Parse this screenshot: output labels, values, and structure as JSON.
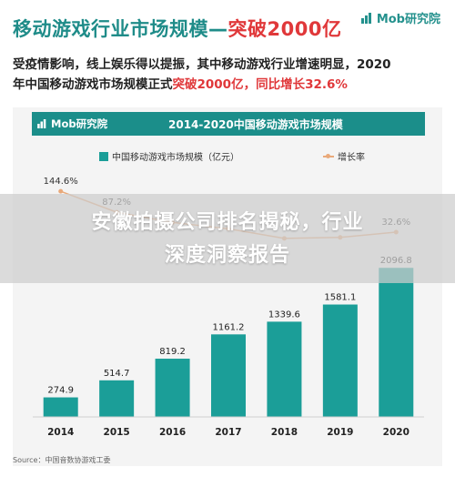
{
  "header": {
    "title_main": "移动游戏行业市场规模—",
    "title_accent": "突破2000亿",
    "brand": "Mob研究院"
  },
  "description": {
    "line1": "受疫情影响，线上娱乐得以提振，其中移动游戏行业增速明显，2020",
    "line2_prefix": "年中国移动游戏市场规模正式",
    "line2_accent": "突破2000亿，同比增长32.6%"
  },
  "card": {
    "brand": "Mob研究院",
    "title": "2014-2020中国移动游戏市场规模"
  },
  "banner": {
    "line1": "安徽拍摄公司排名揭秘，行业",
    "line2": "深度洞察报告"
  },
  "source": "Source：中国音数协游戏工委",
  "colors": {
    "teal": "#1b9e98",
    "header_teal": "#1b8e8a",
    "red": "#e0383a",
    "growth_line": "#e9a97a"
  },
  "chart_data": {
    "type": "bar",
    "title": "2014-2020中国移动游戏市场规模",
    "categories": [
      "2014",
      "2015",
      "2016",
      "2017",
      "2018",
      "2019",
      "2020"
    ],
    "series": [
      {
        "name": "中国移动游戏市场规模（亿元）",
        "type": "bar",
        "values": [
          274.9,
          514.7,
          819.2,
          1161.2,
          1339.6,
          1581.1,
          2096.8
        ],
        "labels": [
          "274.9",
          "514.7",
          "819.2",
          "1161.2",
          "1339.6",
          "1581.1",
          "2096.8"
        ]
      },
      {
        "name": "增长率",
        "type": "line",
        "values": [
          144.6,
          87.2,
          59.2,
          41.7,
          15.4,
          18.0,
          32.6
        ],
        "labels": [
          "144.6%",
          "87.2%",
          "",
          "",
          "",
          "",
          "32.6%"
        ]
      }
    ],
    "ylim": [
      0,
      2100
    ],
    "growth_ylim": [
      0,
      160
    ],
    "legend_position": "top",
    "grid": false
  }
}
